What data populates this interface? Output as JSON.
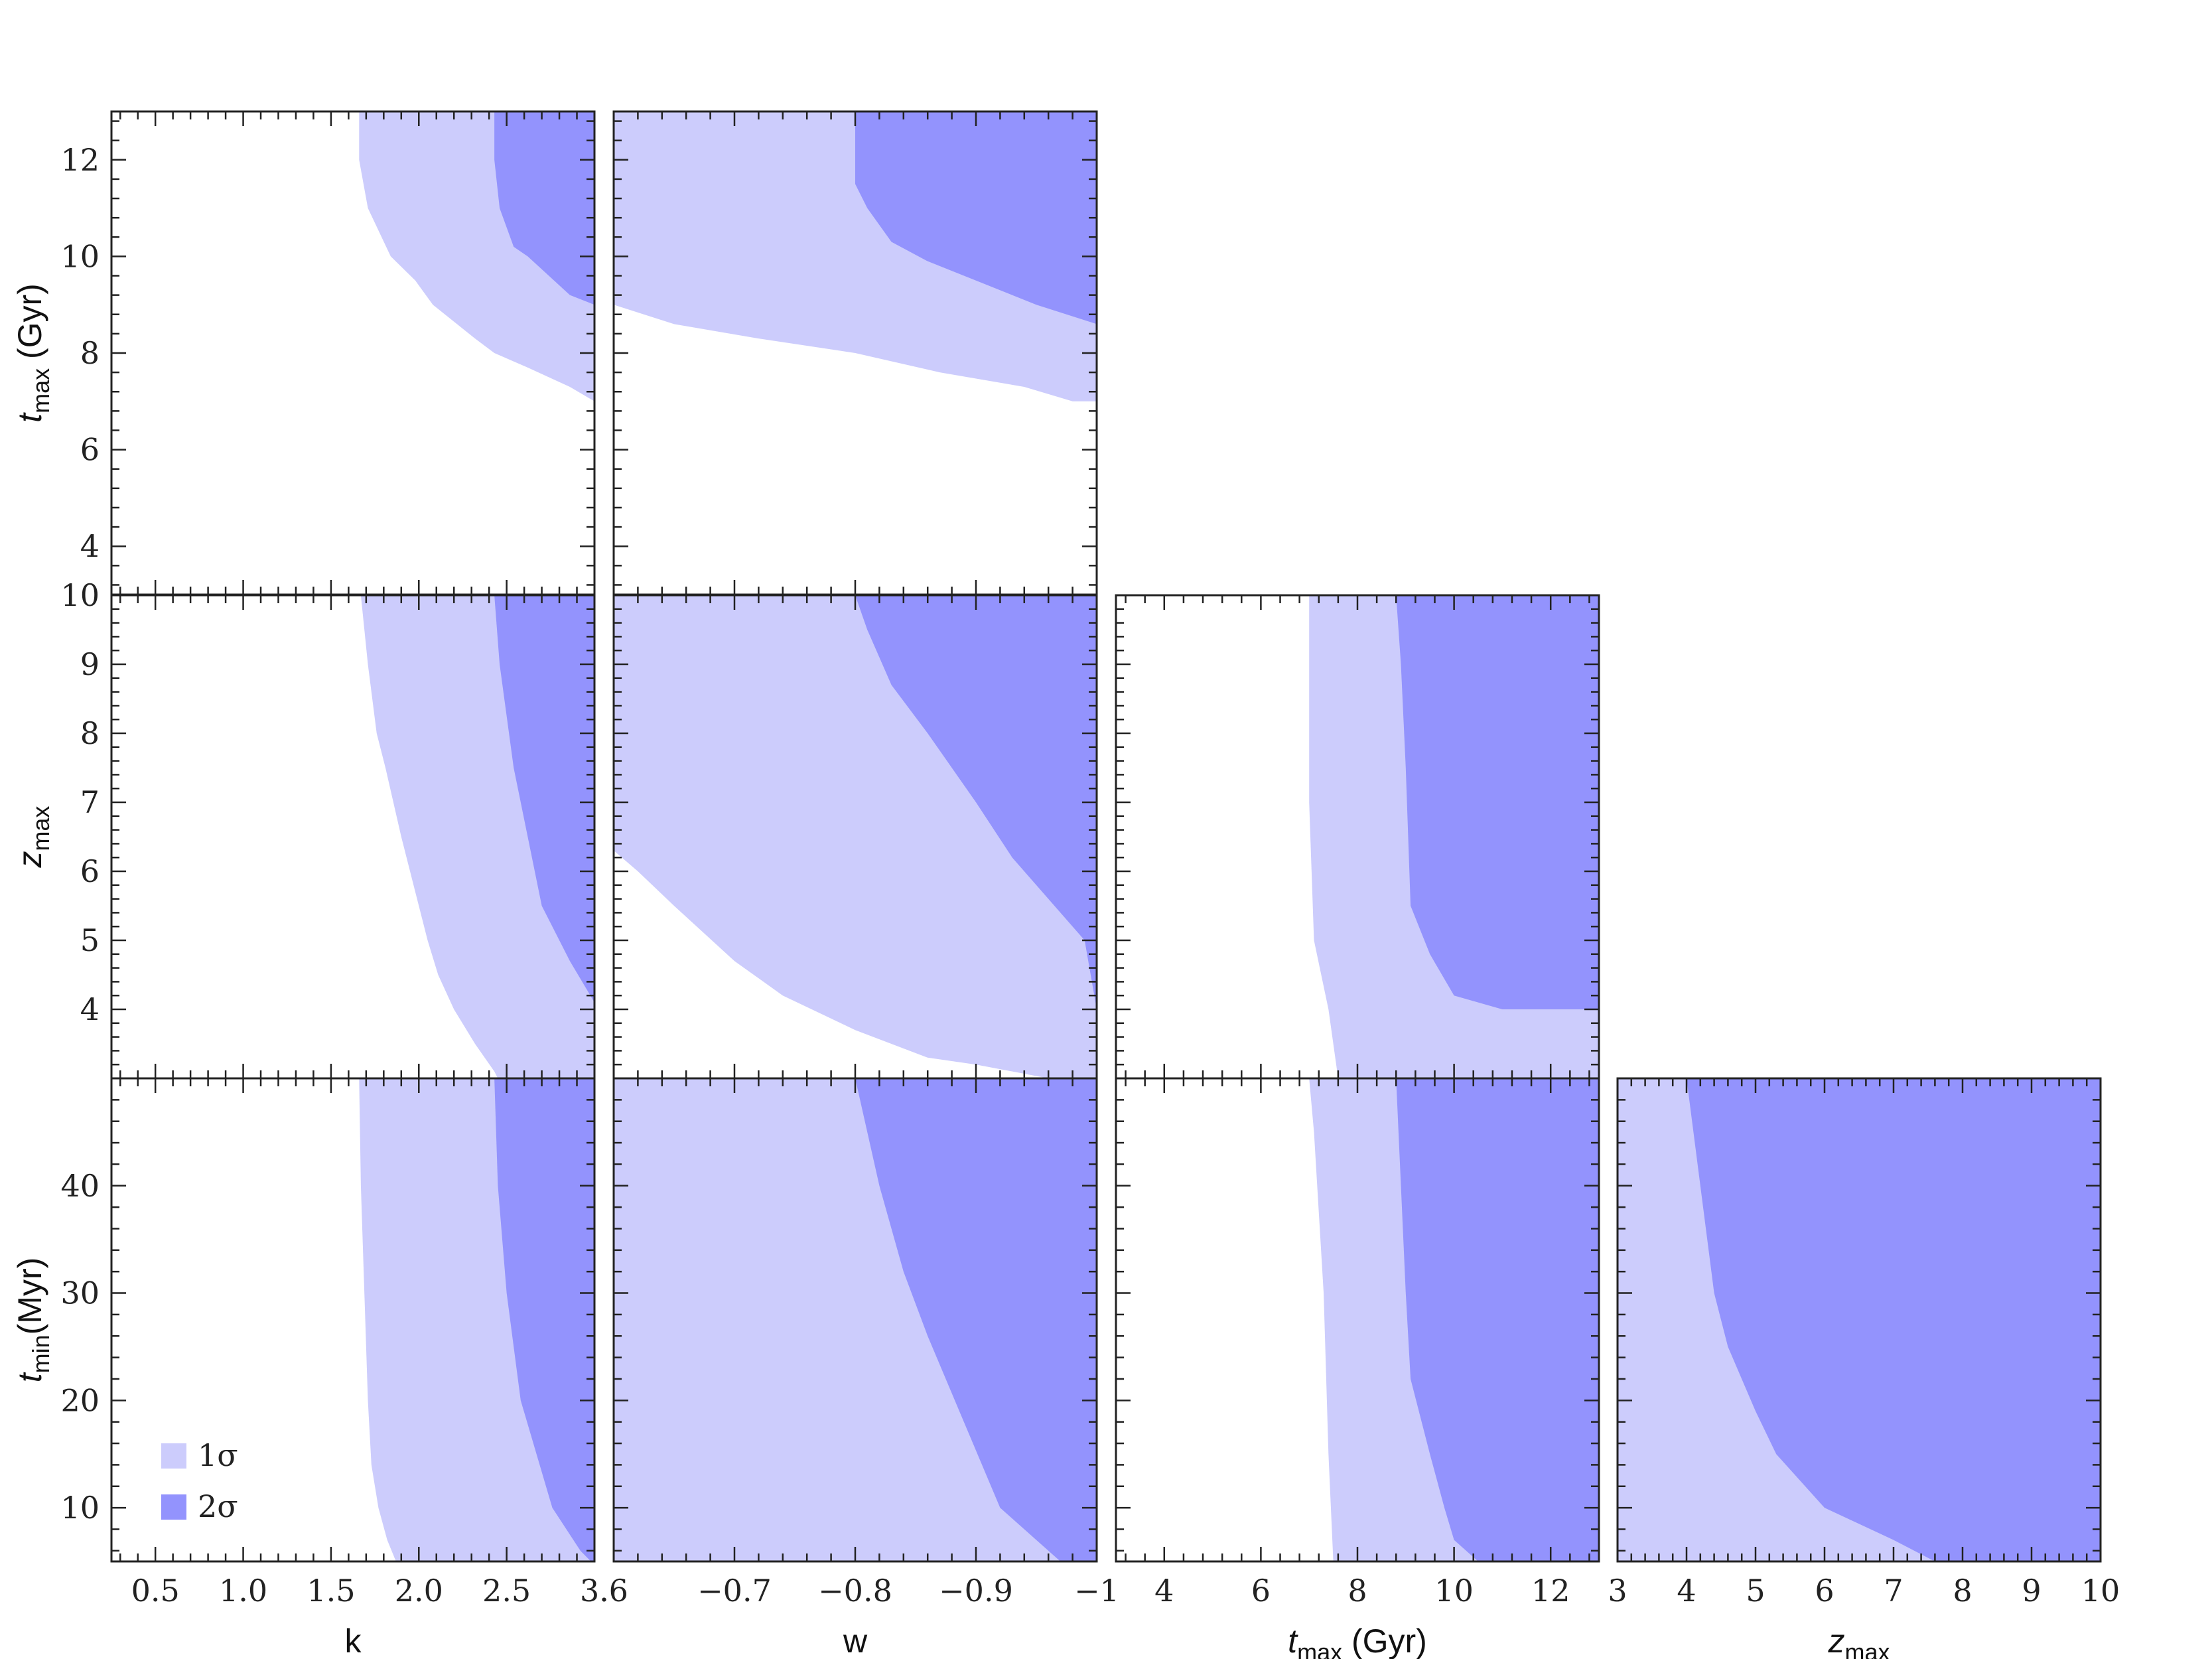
{
  "chart_data": {
    "type": "area",
    "description_labels": {
      "legend": [
        {
          "label": "1σ",
          "color": "#ccccfc"
        },
        {
          "label": "2σ",
          "color": "#9393fd"
        }
      ]
    },
    "colors": {
      "sigma1": "#ccccfc",
      "sigma2": "#9393fd",
      "frame": "#222222"
    },
    "variables": {
      "k": {
        "label": "k",
        "sub": "",
        "range": [
          0.25,
          3.0
        ],
        "ticks": [
          0.5,
          1.0,
          1.5,
          2.0,
          2.5,
          3.0
        ],
        "tick_text": [
          "0.5",
          "1.0",
          "1.5",
          "2.0",
          "2.5",
          "3."
        ]
      },
      "w": {
        "label": "w",
        "sub": "",
        "range": [
          -0.6,
          -1.0
        ],
        "ticks": [
          -0.6,
          -0.7,
          -0.8,
          -0.9,
          -1.0
        ],
        "tick_text": [
          ".6",
          "−0.7",
          "−0.8",
          "−0.9",
          "−1"
        ]
      },
      "tmax": {
        "label": "t",
        "sub": "max",
        "unit": " (Gyr)",
        "range": [
          3.0,
          13.0
        ],
        "ticks": [
          4,
          6,
          8,
          10,
          12
        ],
        "tick_text": [
          "4",
          "6",
          "8",
          "10",
          "12"
        ]
      },
      "zmax": {
        "label": "z",
        "sub": "max",
        "unit": "",
        "range": [
          3.0,
          10.0
        ],
        "ticks": [
          4,
          5,
          6,
          7,
          8,
          9,
          10
        ],
        "tick_text": [
          "4",
          "5",
          "6",
          "7",
          "8",
          "9",
          "10"
        ],
        "x_tick_text": [
          "3",
          "4",
          "5",
          "6",
          "7",
          "8",
          "9",
          "10"
        ],
        "x_ticks": [
          3,
          4,
          5,
          6,
          7,
          8,
          9,
          10
        ]
      },
      "tmin": {
        "label": "t",
        "sub": "min",
        "unit": "(Myr)",
        "range": [
          5.0,
          50.0
        ],
        "ticks": [
          10,
          20,
          30,
          40
        ],
        "tick_text": [
          "10",
          "20",
          "30",
          "40"
        ]
      }
    },
    "row_labels": [
      {
        "var": "tmax",
        "text": "t",
        "sub": "max",
        "unit": " (Gyr)"
      },
      {
        "var": "zmax",
        "text": "z",
        "sub": "max",
        "unit": ""
      },
      {
        "var": "tmin",
        "text": "t",
        "sub": "min",
        "unit": "(Myr)"
      }
    ],
    "col_labels": [
      {
        "var": "k",
        "text": "k",
        "sub": "",
        "unit": ""
      },
      {
        "var": "w",
        "text": "w",
        "sub": "",
        "unit": ""
      },
      {
        "var": "tmax",
        "text": "t",
        "sub": "max",
        "unit": " (Gyr)"
      },
      {
        "var": "zmax",
        "text": "z",
        "sub": "max",
        "unit": ""
      }
    ],
    "panels": [
      {
        "name": "k-tmax",
        "row": 0,
        "col": 0,
        "x": "k",
        "y": "tmax",
        "sigma1_boundary": [
          [
            1.66,
            13.0
          ],
          [
            1.66,
            12.0
          ],
          [
            1.71,
            11.0
          ],
          [
            1.84,
            10.0
          ],
          [
            1.98,
            9.5
          ],
          [
            2.08,
            9.0
          ],
          [
            2.32,
            8.3
          ],
          [
            2.43,
            8.0
          ],
          [
            2.62,
            7.7
          ],
          [
            2.86,
            7.3
          ],
          [
            3.0,
            7.0
          ]
        ],
        "sigma2_boundary": [
          [
            2.43,
            13.0
          ],
          [
            2.43,
            12.0
          ],
          [
            2.46,
            11.0
          ],
          [
            2.54,
            10.2
          ],
          [
            2.62,
            10.0
          ],
          [
            2.77,
            9.5
          ],
          [
            2.86,
            9.2
          ],
          [
            3.0,
            9.0
          ]
        ]
      },
      {
        "name": "w-tmax",
        "row": 0,
        "col": 1,
        "x": "w",
        "y": "tmax",
        "sigma1_boundary": [
          [
            -0.6,
            9.0
          ],
          [
            -0.65,
            8.6
          ],
          [
            -0.72,
            8.3
          ],
          [
            -0.8,
            8.0
          ],
          [
            -0.87,
            7.6
          ],
          [
            -0.94,
            7.3
          ],
          [
            -0.98,
            7.0
          ],
          [
            -1.0,
            7.0
          ]
        ],
        "sigma2_boundary": [
          [
            -0.8,
            13.0
          ],
          [
            -0.8,
            11.5
          ],
          [
            -0.81,
            11.0
          ],
          [
            -0.83,
            10.3
          ],
          [
            -0.86,
            9.9
          ],
          [
            -0.9,
            9.5
          ],
          [
            -0.95,
            9.0
          ],
          [
            -1.0,
            8.6
          ]
        ]
      },
      {
        "name": "k-zmax",
        "row": 1,
        "col": 0,
        "x": "k",
        "y": "zmax",
        "sigma1_boundary": [
          [
            1.67,
            10.0
          ],
          [
            1.71,
            9.0
          ],
          [
            1.76,
            8.0
          ],
          [
            1.81,
            7.5
          ],
          [
            1.9,
            6.5
          ],
          [
            1.98,
            5.7
          ],
          [
            2.05,
            5.0
          ],
          [
            2.11,
            4.5
          ],
          [
            2.2,
            4.0
          ],
          [
            2.32,
            3.5
          ],
          [
            2.43,
            3.1
          ],
          [
            2.45,
            3.0
          ]
        ],
        "sigma2_boundary": [
          [
            2.43,
            10.0
          ],
          [
            2.46,
            9.0
          ],
          [
            2.54,
            7.5
          ],
          [
            2.62,
            6.5
          ],
          [
            2.7,
            5.5
          ],
          [
            2.78,
            5.1
          ],
          [
            2.86,
            4.7
          ],
          [
            3.0,
            4.1
          ]
        ]
      },
      {
        "name": "w-zmax",
        "row": 1,
        "col": 1,
        "x": "w",
        "y": "zmax",
        "sigma1_boundary": [
          [
            -0.6,
            6.3
          ],
          [
            -0.62,
            6.0
          ],
          [
            -0.65,
            5.5
          ],
          [
            -0.7,
            4.7
          ],
          [
            -0.74,
            4.2
          ],
          [
            -0.8,
            3.7
          ],
          [
            -0.86,
            3.3
          ],
          [
            -0.9,
            3.2
          ],
          [
            -0.96,
            3.0
          ],
          [
            -1.0,
            3.0
          ]
        ],
        "sigma2_boundary": [
          [
            -0.8,
            10.0
          ],
          [
            -0.81,
            9.5
          ],
          [
            -0.83,
            8.7
          ],
          [
            -0.86,
            8.0
          ],
          [
            -0.9,
            7.0
          ],
          [
            -0.93,
            6.2
          ],
          [
            -0.96,
            5.6
          ],
          [
            -0.99,
            5.0
          ],
          [
            -1.0,
            4.0
          ]
        ]
      },
      {
        "name": "tmax-zmax",
        "row": 1,
        "col": 2,
        "x": "tmax",
        "y": "zmax",
        "sigma1_boundary": [
          [
            7.0,
            10.0
          ],
          [
            7.0,
            7.0
          ],
          [
            7.1,
            5.0
          ],
          [
            7.4,
            4.0
          ],
          [
            7.6,
            3.0
          ]
        ],
        "sigma2_boundary": [
          [
            8.8,
            10.0
          ],
          [
            8.9,
            9.0
          ],
          [
            9.0,
            7.5
          ],
          [
            9.1,
            5.5
          ],
          [
            9.5,
            4.8
          ],
          [
            10.0,
            4.2
          ],
          [
            11.0,
            4.0
          ],
          [
            13.0,
            4.0
          ]
        ]
      },
      {
        "name": "k-tmin",
        "row": 2,
        "col": 0,
        "x": "k",
        "y": "tmin",
        "sigma1_boundary": [
          [
            1.66,
            50.0
          ],
          [
            1.67,
            40.0
          ],
          [
            1.69,
            30.0
          ],
          [
            1.71,
            20.0
          ],
          [
            1.73,
            14.0
          ],
          [
            1.77,
            10.0
          ],
          [
            1.82,
            7.0
          ],
          [
            1.87,
            5.0
          ]
        ],
        "sigma2_boundary": [
          [
            2.43,
            50.0
          ],
          [
            2.45,
            40.0
          ],
          [
            2.5,
            30.0
          ],
          [
            2.58,
            20.0
          ],
          [
            2.67,
            15.0
          ],
          [
            2.76,
            10.0
          ],
          [
            2.92,
            6.0
          ],
          [
            2.98,
            5.0
          ]
        ]
      },
      {
        "name": "w-tmin",
        "row": 2,
        "col": 1,
        "x": "w",
        "y": "tmin",
        "sigma1_boundary": [
          [
            -0.93,
            5.0
          ],
          [
            -0.96,
            5.0
          ]
        ],
        "sigma2_boundary": [
          [
            -0.8,
            50.0
          ],
          [
            -0.81,
            45.0
          ],
          [
            -0.82,
            40.0
          ],
          [
            -0.84,
            32.0
          ],
          [
            -0.86,
            26.0
          ],
          [
            -0.89,
            18.0
          ],
          [
            -0.92,
            10.0
          ],
          [
            -0.96,
            6.0
          ],
          [
            -0.97,
            5.0
          ]
        ]
      },
      {
        "name": "tmax-tmin",
        "row": 2,
        "col": 2,
        "x": "tmax",
        "y": "tmin",
        "sigma1_boundary": [
          [
            7.0,
            50.0
          ],
          [
            7.1,
            45.0
          ],
          [
            7.3,
            30.0
          ],
          [
            7.4,
            15.0
          ],
          [
            7.5,
            5.0
          ]
        ],
        "sigma2_boundary": [
          [
            8.8,
            50.0
          ],
          [
            8.9,
            40.0
          ],
          [
            9.0,
            30.0
          ],
          [
            9.1,
            22.0
          ],
          [
            9.5,
            15.0
          ],
          [
            9.8,
            10.0
          ],
          [
            10.0,
            7.0
          ],
          [
            10.5,
            5.0
          ]
        ]
      },
      {
        "name": "zmax-tmin",
        "row": 2,
        "col": 3,
        "x": "zmax",
        "y": "tmin",
        "sigma1_boundary": [
          [
            7.6,
            5.0
          ]
        ],
        "sigma2_boundary": [
          [
            4.0,
            50.0
          ],
          [
            4.2,
            40.0
          ],
          [
            4.4,
            30.0
          ],
          [
            4.6,
            25.0
          ],
          [
            4.8,
            22.0
          ],
          [
            5.0,
            19.0
          ],
          [
            5.3,
            15.0
          ],
          [
            6.0,
            10.0
          ],
          [
            7.0,
            7.0
          ],
          [
            7.6,
            5.0
          ]
        ]
      }
    ]
  }
}
